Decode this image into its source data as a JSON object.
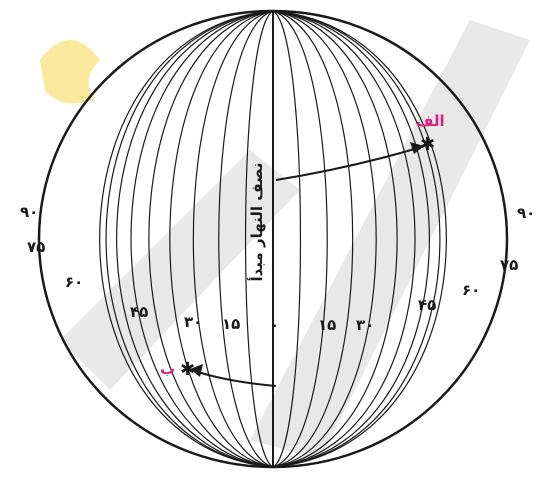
{
  "diagram": {
    "meridian_label": "نصف النهار مبدأ",
    "point_a_label": "الف",
    "point_b_label": "ب",
    "left_labels": [
      "۹۰",
      "۷۵",
      "۶۰",
      "۴۵",
      "۳۰",
      "۱۵",
      "۰"
    ],
    "right_labels": [
      "۱۵",
      "۳۰",
      "۴۵",
      "۶۰",
      "۷۵",
      "۹۰"
    ],
    "colors": {
      "line": "#1a1a1a",
      "point_label": "#e0207a",
      "watermark_grey": "#d9d9d9",
      "watermark_yellow": "#f7d64a"
    }
  }
}
